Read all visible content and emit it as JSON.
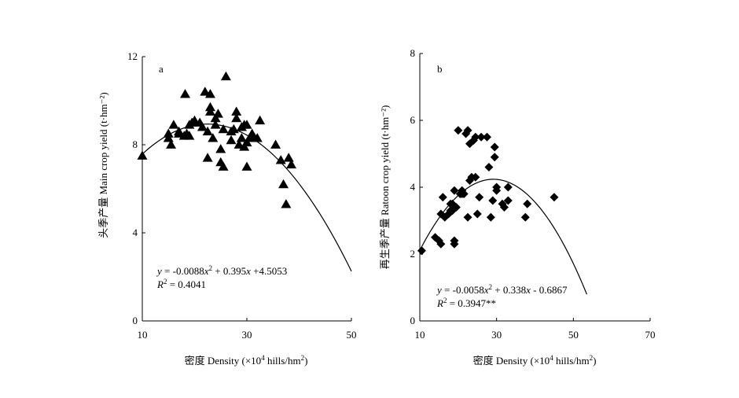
{
  "chart_data": [
    {
      "type": "scatter",
      "panel_label": "a",
      "marker": "triangle",
      "ylabel": "头季产量 Main crop yield (t·hm⁻²)",
      "xlabel_text": "密度 Density (×10",
      "xlabel_sup": "4",
      "xlabel_text2": " hills/hm",
      "xlabel_sup2": "2",
      "xlabel_text3": ")",
      "xlim": [
        10,
        50
      ],
      "ylim": [
        0,
        12
      ],
      "xticks": [
        10,
        30,
        50
      ],
      "yticks": [
        0,
        4,
        8,
        12
      ],
      "equation": {
        "y_part": "y",
        "mid1": " = -0.0088",
        "x_part": "x",
        "sup": "2",
        "mid2": " + 0.395",
        "x2_part": "x",
        "tail": " +4.5053"
      },
      "r2": {
        "r": "R",
        "sup": "2",
        "value": " = 0.4041"
      },
      "fit": {
        "a": -0.0088,
        "b": 0.395,
        "c": 4.5053,
        "x_range": [
          10,
          50
        ]
      },
      "points": [
        [
          10,
          7.5
        ],
        [
          15,
          8.3
        ],
        [
          15,
          8.5
        ],
        [
          15.5,
          8.0
        ],
        [
          16,
          8.9
        ],
        [
          17,
          8.5
        ],
        [
          17,
          8.6
        ],
        [
          18,
          8.4
        ],
        [
          18.2,
          10.3
        ],
        [
          18.5,
          8.5
        ],
        [
          19,
          8.4
        ],
        [
          19,
          8.9
        ],
        [
          19.5,
          9.0
        ],
        [
          20,
          9.1
        ],
        [
          21,
          9.0
        ],
        [
          21.5,
          8.8
        ],
        [
          22,
          10.4
        ],
        [
          22.5,
          7.4
        ],
        [
          22.5,
          8.6
        ],
        [
          23,
          9.7
        ],
        [
          23,
          10.3
        ],
        [
          23,
          9.5
        ],
        [
          23.5,
          8.3
        ],
        [
          24,
          9.2
        ],
        [
          24,
          8.9
        ],
        [
          24.5,
          9.4
        ],
        [
          25,
          7.8
        ],
        [
          25,
          7.2
        ],
        [
          25.5,
          7.0
        ],
        [
          25.5,
          8.7
        ],
        [
          26,
          11.1
        ],
        [
          27,
          8.6
        ],
        [
          27,
          8.2
        ],
        [
          27.5,
          8.7
        ],
        [
          28,
          9.5
        ],
        [
          28,
          9.2
        ],
        [
          28.5,
          8.0
        ],
        [
          29,
          8.8
        ],
        [
          29,
          8.3
        ],
        [
          29.5,
          8.9
        ],
        [
          29.5,
          7.9
        ],
        [
          30,
          8.9
        ],
        [
          30,
          8.1
        ],
        [
          30,
          7.0
        ],
        [
          30.5,
          8.3
        ],
        [
          31,
          8.5
        ],
        [
          31.5,
          8.3
        ],
        [
          32,
          8.3
        ],
        [
          32.5,
          9.1
        ],
        [
          35.5,
          8.0
        ],
        [
          36.5,
          7.3
        ],
        [
          37,
          6.2
        ],
        [
          37.5,
          5.3
        ],
        [
          38,
          7.4
        ],
        [
          38.5,
          7.1
        ]
      ]
    },
    {
      "type": "scatter",
      "panel_label": "b",
      "marker": "diamond",
      "ylabel": "再生季产量 Ratoon crop yield (t·hm⁻²)",
      "xlabel_text": "密度 Density (×10",
      "xlabel_sup": "4",
      "xlabel_text2": " hills/hm",
      "xlabel_sup2": "2",
      "xlabel_text3": ")",
      "xlim": [
        10,
        70
      ],
      "ylim": [
        0,
        8
      ],
      "xticks": [
        10,
        30,
        50,
        70
      ],
      "yticks": [
        0,
        2,
        4,
        6,
        8
      ],
      "equation": {
        "y_part": "y",
        "mid1": " = -0.0058",
        "x_part": "x",
        "sup": "2",
        "mid2": " + 0.338",
        "x2_part": "x",
        "tail": " - 0.6867"
      },
      "r2": {
        "r": "R",
        "sup": "2",
        "value": " = 0.3947**"
      },
      "fit": {
        "a": -0.0058,
        "b": 0.338,
        "c": -0.6867,
        "x_range": [
          10,
          53.5
        ]
      },
      "points": [
        [
          10.5,
          2.1
        ],
        [
          14,
          2.5
        ],
        [
          15,
          2.4
        ],
        [
          15.5,
          2.3
        ],
        [
          15.5,
          3.2
        ],
        [
          16,
          3.7
        ],
        [
          16.5,
          3.1
        ],
        [
          17.5,
          3.2
        ],
        [
          18,
          3.3
        ],
        [
          18,
          3.5
        ],
        [
          18.5,
          3.3
        ],
        [
          18.5,
          3.5
        ],
        [
          19,
          2.3
        ],
        [
          19,
          2.4
        ],
        [
          19,
          3.9
        ],
        [
          19.5,
          3.4
        ],
        [
          20,
          5.7
        ],
        [
          20.5,
          3.8
        ],
        [
          21,
          3.9
        ],
        [
          21,
          3.8
        ],
        [
          21.5,
          3.8
        ],
        [
          22,
          5.6
        ],
        [
          22.5,
          5.7
        ],
        [
          22.5,
          3.1
        ],
        [
          23,
          5.3
        ],
        [
          23,
          4.2
        ],
        [
          23.5,
          4.3
        ],
        [
          24,
          5.4
        ],
        [
          24.5,
          5.5
        ],
        [
          24.5,
          4.3
        ],
        [
          25,
          3.2
        ],
        [
          25.5,
          3.7
        ],
        [
          26,
          5.5
        ],
        [
          27.5,
          5.5
        ],
        [
          28,
          4.6
        ],
        [
          28.5,
          3.1
        ],
        [
          29,
          3.6
        ],
        [
          29.5,
          5.2
        ],
        [
          29.5,
          4.9
        ],
        [
          30,
          4.0
        ],
        [
          30,
          3.9
        ],
        [
          31.5,
          3.5
        ],
        [
          32,
          3.4
        ],
        [
          33,
          4.0
        ],
        [
          33,
          3.6
        ],
        [
          37.5,
          3.1
        ],
        [
          38,
          3.5
        ],
        [
          45,
          3.7
        ]
      ]
    }
  ]
}
